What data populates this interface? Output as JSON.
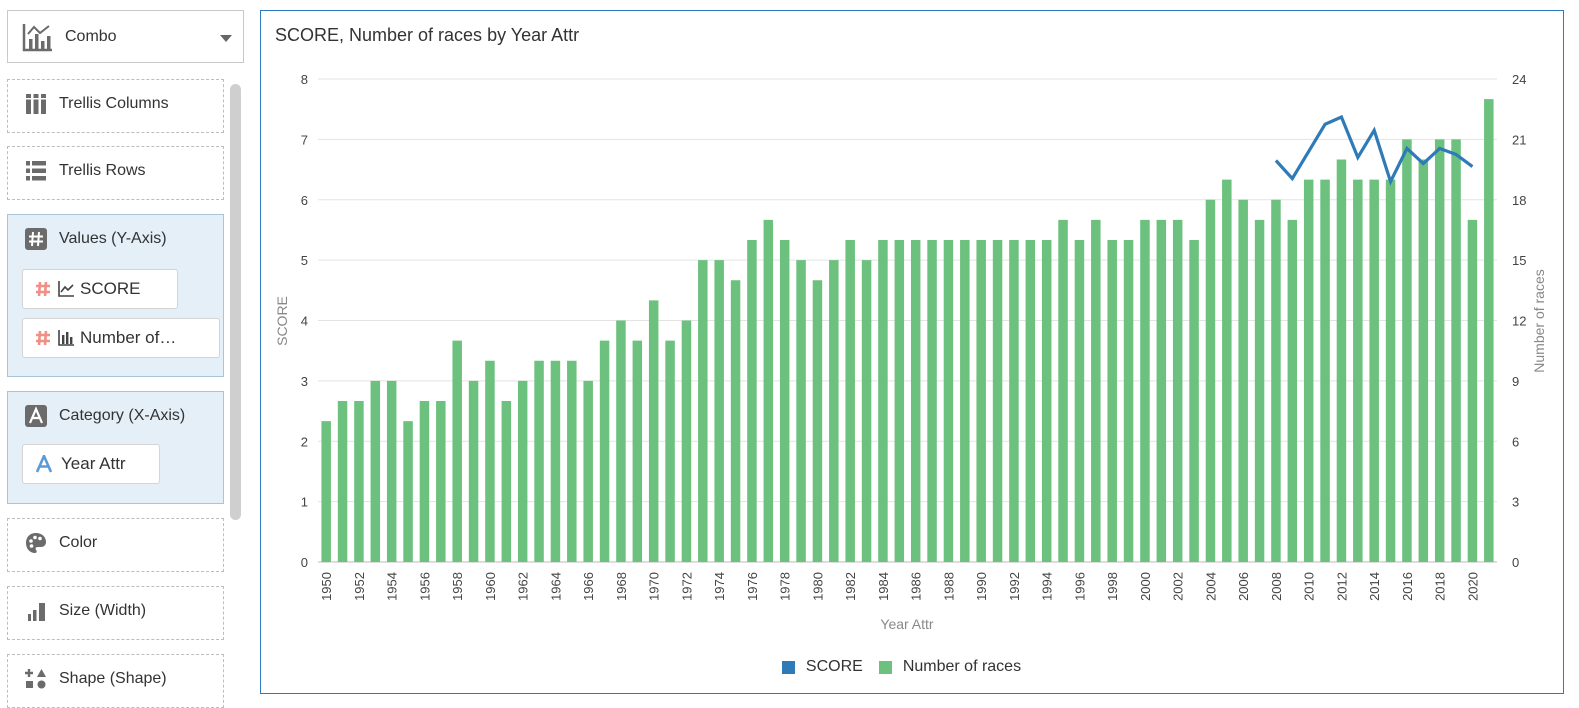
{
  "sidebar": {
    "chart_type": {
      "label": "Combo",
      "icon": "combo-chart-icon"
    },
    "drop_zones": [
      {
        "label": "Trellis Columns",
        "icon": "trellis-columns-icon"
      },
      {
        "label": "Trellis Rows",
        "icon": "trellis-rows-icon"
      },
      {
        "label": "Values (Y-Axis)",
        "icon": "hash-icon",
        "pills": [
          {
            "label": "SCORE",
            "type_icon": "line-chart-icon"
          },
          {
            "label": "Number of…",
            "type_icon": "bar-chart-icon"
          }
        ]
      },
      {
        "label": "Category (X-Axis)",
        "icon": "attribute-a-icon",
        "pills": [
          {
            "label": "Year Attr",
            "type_icon": "attribute-a-icon"
          }
        ]
      },
      {
        "label": "Color",
        "icon": "palette-icon"
      },
      {
        "label": "Size (Width)",
        "icon": "size-icon"
      },
      {
        "label": "Shape (Shape)",
        "icon": "shape-icon"
      }
    ]
  },
  "chart_data": {
    "type": "bar",
    "combo": true,
    "title": "SCORE, Number of races by Year Attr",
    "xlabel": "Year Attr",
    "ylabel_left": "SCORE",
    "ylabel_right": "Number of races",
    "ylim_left": [
      0,
      8
    ],
    "ylim_right": [
      0,
      24
    ],
    "yticks_left": [
      0,
      1,
      2,
      3,
      4,
      5,
      6,
      7,
      8
    ],
    "yticks_right": [
      0,
      3,
      6,
      9,
      12,
      15,
      18,
      21,
      24
    ],
    "grid": true,
    "legend_position": "bottom",
    "colors": {
      "bars": "#6dc17e",
      "line": "#2e7bb8"
    },
    "categories": [
      1950,
      1951,
      1952,
      1953,
      1954,
      1955,
      1956,
      1957,
      1958,
      1959,
      1960,
      1961,
      1962,
      1963,
      1964,
      1965,
      1966,
      1967,
      1968,
      1969,
      1970,
      1971,
      1972,
      1973,
      1974,
      1975,
      1976,
      1977,
      1978,
      1979,
      1980,
      1981,
      1982,
      1983,
      1984,
      1985,
      1986,
      1987,
      1988,
      1989,
      1990,
      1991,
      1992,
      1993,
      1994,
      1995,
      1996,
      1997,
      1998,
      1999,
      2000,
      2001,
      2002,
      2003,
      2004,
      2005,
      2006,
      2007,
      2008,
      2009,
      2010,
      2011,
      2012,
      2013,
      2014,
      2015,
      2016,
      2017,
      2018,
      2019,
      2020,
      2021
    ],
    "x_tick_labels": [
      "1950",
      "1952",
      "1954",
      "1956",
      "1958",
      "1960",
      "1962",
      "1964",
      "1966",
      "1968",
      "1970",
      "1972",
      "1974",
      "1976",
      "1978",
      "1980",
      "1982",
      "1984",
      "1986",
      "1988",
      "1990",
      "1992",
      "1994",
      "1996",
      "1998",
      "2000",
      "2002",
      "2004",
      "2006",
      "2008",
      "2010",
      "2012",
      "2014",
      "2016",
      "2018",
      "2020"
    ],
    "series": [
      {
        "name": "SCORE",
        "type": "line",
        "axis": "left",
        "values": [
          null,
          null,
          null,
          null,
          null,
          null,
          null,
          null,
          null,
          null,
          null,
          null,
          null,
          null,
          null,
          null,
          null,
          null,
          null,
          null,
          null,
          null,
          null,
          null,
          null,
          null,
          null,
          null,
          null,
          null,
          null,
          null,
          null,
          null,
          null,
          null,
          null,
          null,
          null,
          null,
          null,
          null,
          null,
          null,
          null,
          null,
          null,
          null,
          null,
          null,
          null,
          null,
          null,
          null,
          null,
          null,
          null,
          null,
          6.65,
          6.35,
          6.8,
          7.25,
          7.37,
          6.7,
          7.15,
          6.3,
          6.85,
          6.6,
          6.85,
          6.75,
          6.55,
          null
        ]
      },
      {
        "name": "Number of races",
        "type": "bar",
        "axis": "right",
        "values": [
          7,
          8,
          8,
          9,
          9,
          7,
          8,
          8,
          11,
          9,
          10,
          8,
          9,
          10,
          10,
          10,
          9,
          11,
          12,
          11,
          13,
          11,
          12,
          15,
          15,
          14,
          16,
          17,
          16,
          15,
          14,
          15,
          16,
          15,
          16,
          16,
          16,
          16,
          16,
          16,
          16,
          16,
          16,
          16,
          16,
          17,
          16,
          17,
          16,
          16,
          17,
          17,
          17,
          16,
          18,
          19,
          18,
          17,
          18,
          17,
          19,
          19,
          20,
          19,
          19,
          19,
          21,
          20,
          21,
          21,
          17,
          23
        ]
      }
    ]
  }
}
